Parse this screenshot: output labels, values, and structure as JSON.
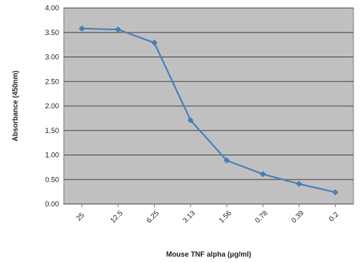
{
  "chart_data": {
    "type": "line",
    "title": "",
    "xlabel": "Mouse TNF alpha (µg/ml)",
    "ylabel": "Absorbance (450nm)",
    "categories": [
      "25",
      "12.5",
      "6.25",
      "3.13",
      "1.56",
      "0.78",
      "0.39",
      "0.2"
    ],
    "series": [
      {
        "values": [
          3.58,
          3.56,
          3.29,
          1.71,
          0.89,
          0.61,
          0.41,
          0.24
        ],
        "color": "#4a7ebb"
      }
    ],
    "ylim": [
      0,
      4
    ],
    "yticks": [
      "0.00",
      "0.50",
      "1.00",
      "1.50",
      "2.00",
      "2.50",
      "3.00",
      "3.50",
      "4.00"
    ],
    "grid": true,
    "legend": "none",
    "plot_background": "#c0c0c0",
    "gridline_color": "#4d4d4d"
  }
}
